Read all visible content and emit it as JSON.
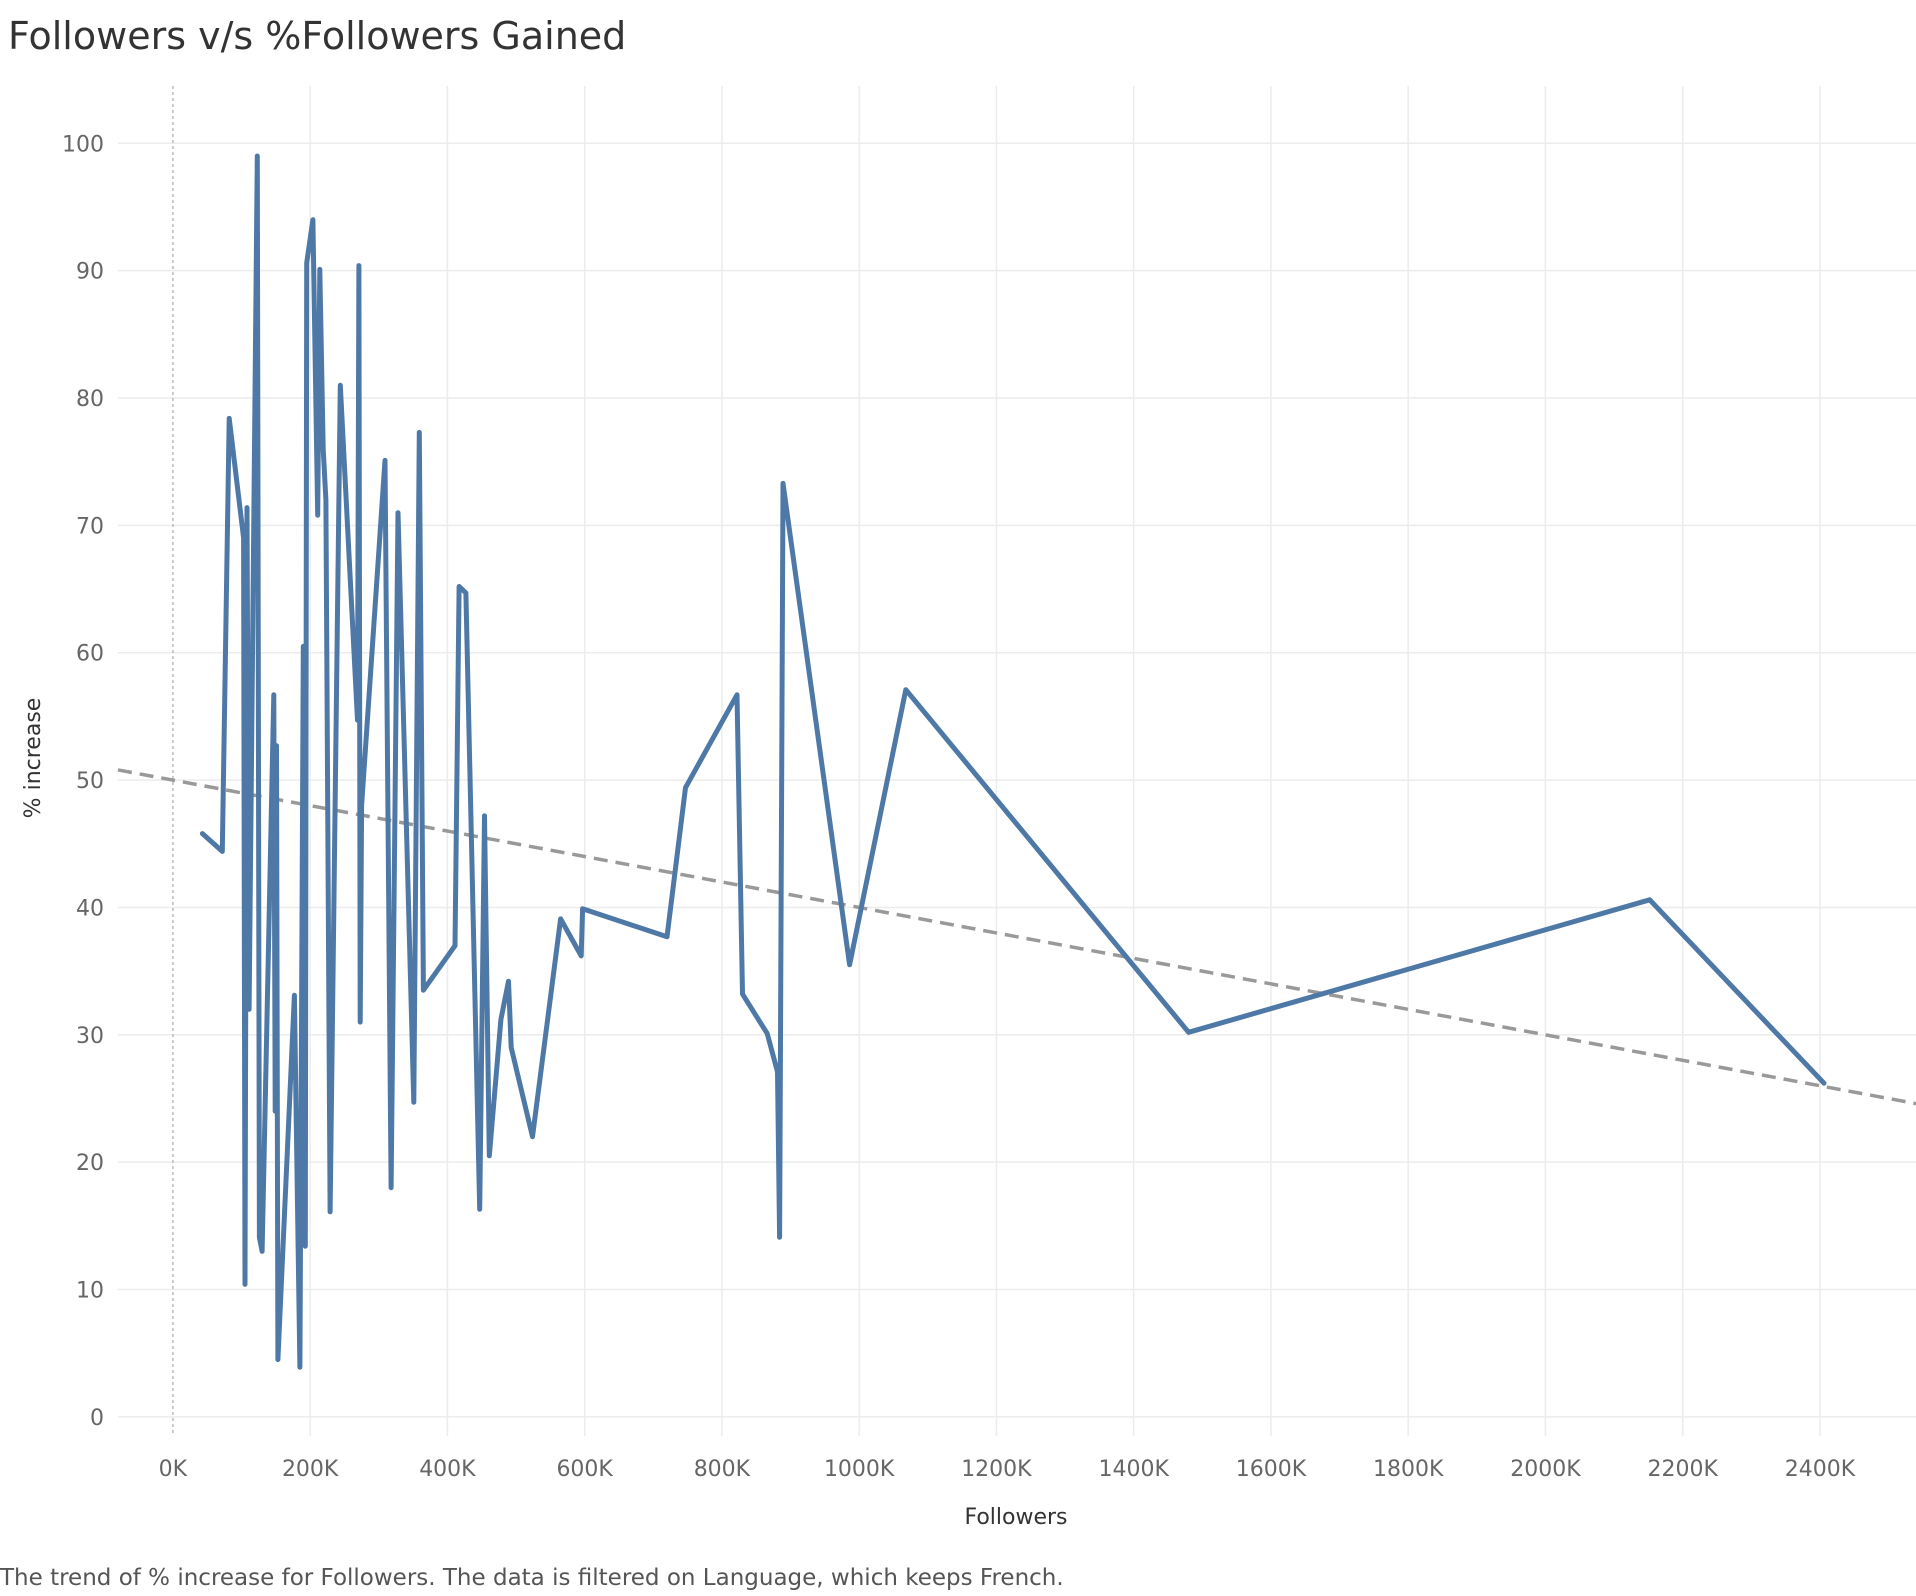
{
  "chart_data": {
    "type": "line",
    "title": "Followers v/s %Followers Gained",
    "caption": "The trend of % increase for Followers. The data is filtered on Language, which keeps French.",
    "xlabel": "Followers",
    "ylabel": "% increase",
    "xlim": [
      -80000,
      2540000
    ],
    "ylim": [
      -1.5,
      104.5
    ],
    "xticks": [
      {
        "value": 0,
        "label": "0K"
      },
      {
        "value": 200000,
        "label": "200K"
      },
      {
        "value": 400000,
        "label": "400K"
      },
      {
        "value": 600000,
        "label": "600K"
      },
      {
        "value": 800000,
        "label": "800K"
      },
      {
        "value": 1000000,
        "label": "1000K"
      },
      {
        "value": 1200000,
        "label": "1200K"
      },
      {
        "value": 1400000,
        "label": "1400K"
      },
      {
        "value": 1600000,
        "label": "1600K"
      },
      {
        "value": 1800000,
        "label": "1800K"
      },
      {
        "value": 2000000,
        "label": "2000K"
      },
      {
        "value": 2200000,
        "label": "2200K"
      },
      {
        "value": 2400000,
        "label": "2400K"
      }
    ],
    "yticks": [
      {
        "value": 0,
        "label": "0"
      },
      {
        "value": 10,
        "label": "10"
      },
      {
        "value": 20,
        "label": "20"
      },
      {
        "value": 30,
        "label": "30"
      },
      {
        "value": 40,
        "label": "40"
      },
      {
        "value": 50,
        "label": "50"
      },
      {
        "value": 60,
        "label": "60"
      },
      {
        "value": 70,
        "label": "70"
      },
      {
        "value": 80,
        "label": "80"
      },
      {
        "value": 90,
        "label": "90"
      },
      {
        "value": 100,
        "label": "100"
      }
    ],
    "grid": true,
    "colors": {
      "line": "#4e79a7",
      "trend": "#999999",
      "grid": "#ececec",
      "zero_line": "#bbbbbb"
    },
    "series": [
      {
        "values": [
          [
            43000,
            45.8
          ],
          [
            72000,
            44.4
          ],
          [
            82000,
            78.4
          ],
          [
            103000,
            69.0
          ],
          [
            105000,
            10.4
          ],
          [
            108000,
            71.4
          ],
          [
            111000,
            32.0
          ],
          [
            123000,
            99.0
          ],
          [
            126000,
            14.1
          ],
          [
            130000,
            13.0
          ],
          [
            147000,
            56.7
          ],
          [
            149000,
            24.0
          ],
          [
            151000,
            52.7
          ],
          [
            153000,
            4.5
          ],
          [
            177000,
            33.1
          ],
          [
            185000,
            3.9
          ],
          [
            190000,
            60.5
          ],
          [
            193000,
            13.4
          ],
          [
            195000,
            90.6
          ],
          [
            204000,
            94.0
          ],
          [
            211000,
            70.8
          ],
          [
            214000,
            90.1
          ],
          [
            219000,
            76.0
          ],
          [
            223000,
            72.0
          ],
          [
            229000,
            16.1
          ],
          [
            244000,
            81.0
          ],
          [
            269000,
            54.7
          ],
          [
            271000,
            90.4
          ],
          [
            273000,
            31.0
          ],
          [
            275000,
            48.0
          ],
          [
            309000,
            75.1
          ],
          [
            318000,
            18.0
          ],
          [
            328000,
            71.0
          ],
          [
            351000,
            24.7
          ],
          [
            359000,
            77.3
          ],
          [
            365000,
            33.5
          ],
          [
            411000,
            37.0
          ],
          [
            417000,
            65.2
          ],
          [
            427000,
            64.7
          ],
          [
            447000,
            16.3
          ],
          [
            454000,
            47.2
          ],
          [
            461000,
            20.5
          ],
          [
            478000,
            31.2
          ],
          [
            489000,
            34.2
          ],
          [
            493000,
            29.0
          ],
          [
            524000,
            22.0
          ],
          [
            565000,
            39.1
          ],
          [
            595000,
            36.2
          ],
          [
            597000,
            39.9
          ],
          [
            720000,
            37.7
          ],
          [
            747000,
            49.4
          ],
          [
            822000,
            56.7
          ],
          [
            830000,
            33.2
          ],
          [
            866000,
            30.1
          ],
          [
            881000,
            27.1
          ],
          [
            884000,
            14.1
          ],
          [
            889000,
            73.3
          ],
          [
            986000,
            35.5
          ],
          [
            1068000,
            57.1
          ],
          [
            1480000,
            30.2
          ],
          [
            2152000,
            40.6
          ],
          [
            2406000,
            26.2
          ]
        ]
      }
    ],
    "trend_line": [
      [
        -80000,
        50.8
      ],
      [
        2540000,
        24.6
      ]
    ]
  }
}
